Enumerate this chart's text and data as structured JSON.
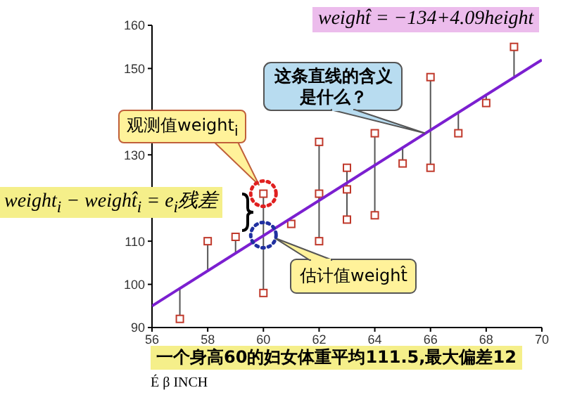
{
  "chart_data": {
    "type": "scatter",
    "xlabel": "É β INCH",
    "xlim": [
      56,
      70
    ],
    "xticks": [
      56,
      58,
      60,
      62,
      64,
      66,
      68,
      70
    ],
    "ylim": [
      90,
      160
    ],
    "yticks": [
      90,
      100,
      110,
      {
        "value": 120,
        "label": null
      },
      130,
      {
        "value": 140,
        "label": null
      },
      150,
      160
    ],
    "series": [
      {
        "color": "#c0392b",
        "marker": "square",
        "x": [
          57,
          58,
          59,
          60,
          60,
          61,
          62,
          62,
          62,
          63,
          63,
          63,
          64,
          64,
          65,
          66,
          66,
          67,
          68,
          69
        ],
        "values": [
          92,
          110,
          111,
          121,
          98,
          114,
          133,
          121,
          110,
          127,
          122,
          115,
          135,
          116,
          128,
          148,
          127,
          135,
          142,
          155
        ],
        "errors": [
          [
            92,
            99.1
          ],
          [
            103.2,
            110
          ],
          [
            107.3,
            111
          ],
          [
            111.4,
            121
          ],
          [
            98,
            111.4
          ],
          null,
          [
            119.6,
            133
          ],
          [
            119.6,
            121
          ],
          [
            110,
            119.6
          ],
          [
            123.7,
            127
          ],
          [
            122,
            123.7
          ],
          [
            115,
            123.7
          ],
          [
            127.8,
            135
          ],
          [
            116,
            127.8
          ],
          [
            128,
            131.9
          ],
          [
            135.9,
            148
          ],
          [
            127,
            135.9
          ],
          [
            135,
            140
          ],
          [
            142,
            144.1
          ],
          [
            148.2,
            155
          ]
        ]
      },
      {
        "type": "line",
        "color": "#7b1fd0",
        "marker": "none",
        "x": [
          56,
          70
        ],
        "values": [
          95,
          152
        ]
      }
    ],
    "annotations": [
      "weight̂ = −134+4.09height",
      "weight$_{i}$ − weight̂$_{i}$ = e$_{i}$残差",
      "观测值weight$_{i}$",
      "这条直线的含义是什么？",
      "估计值weight̂",
      "一个身高60的妇女体重平均111.5,最大偏差12"
    ]
  }
}
